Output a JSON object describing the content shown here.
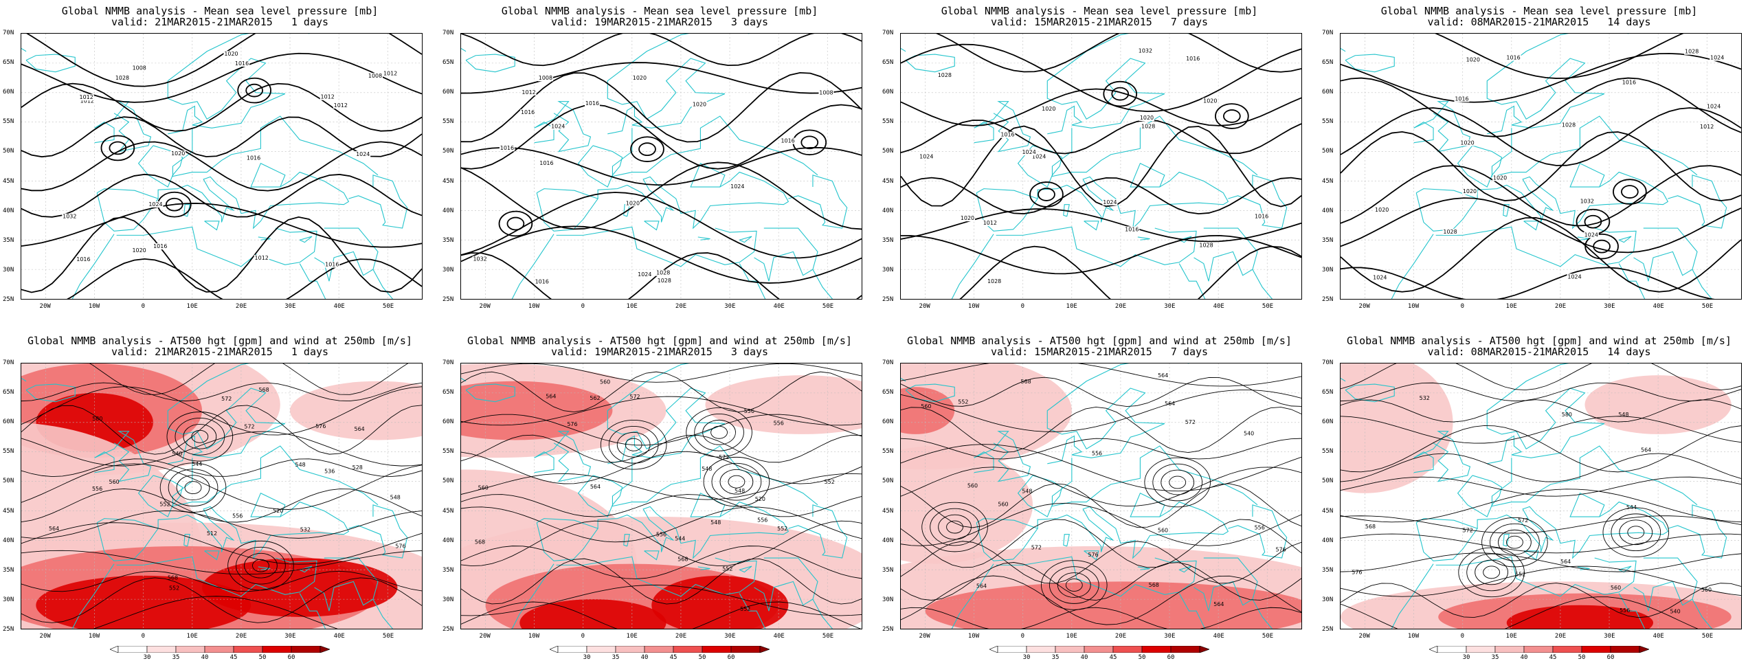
{
  "panels": [
    {
      "row": "mslp",
      "title": "Global NMMB analysis - Mean sea level pressure [mb]",
      "valid": "valid: 21MAR2015-21MAR2015   1 days"
    },
    {
      "row": "mslp",
      "title": "Global NMMB analysis - Mean sea level pressure [mb]",
      "valid": "valid: 19MAR2015-21MAR2015   3 days"
    },
    {
      "row": "mslp",
      "title": "Global NMMB analysis - Mean sea level pressure [mb]",
      "valid": "valid: 15MAR2015-21MAR2015   7 days"
    },
    {
      "row": "mslp",
      "title": "Global NMMB analysis - Mean sea level pressure [mb]",
      "valid": "valid: 08MAR2015-21MAR2015   14 days"
    },
    {
      "row": "z500",
      "title": "Global NMMB analysis - AT500 hgt [gpm] and wind at 250mb [m/s]",
      "valid": "valid: 21MAR2015-21MAR2015   1 days"
    },
    {
      "row": "z500",
      "title": "Global NMMB analysis - AT500 hgt [gpm] and wind at 250mb [m/s]",
      "valid": "valid: 19MAR2015-21MAR2015   3 days"
    },
    {
      "row": "z500",
      "title": "Global NMMB analysis - AT500 hgt [gpm] and wind at 250mb [m/s]",
      "valid": "valid: 15MAR2015-21MAR2015   7 days"
    },
    {
      "row": "z500",
      "title": "Global NMMB analysis - AT500 hgt [gpm] and wind at 250mb [m/s]",
      "valid": "valid: 08MAR2015-21MAR2015   14 days"
    }
  ],
  "lat_labels": [
    "70N",
    "65N",
    "60N",
    "55N",
    "50N",
    "45N",
    "40N",
    "35N",
    "30N",
    "25N"
  ],
  "lon_labels": [
    "20W",
    "10W",
    "0",
    "10E",
    "20E",
    "30E",
    "40E",
    "50E"
  ],
  "colorbar_labels": [
    "30",
    "35",
    "40",
    "45",
    "50",
    "60"
  ],
  "mslp_contour_labels": [
    [
      "1028",
      "1024",
      "1020",
      "1016",
      "1032",
      "1012",
      "1016",
      "1020",
      "1024",
      "1008",
      "1012",
      "1008",
      "1012",
      "1012",
      "1016",
      "1016",
      "1016",
      "1012",
      "1020",
      "1012"
    ],
    [
      "1028",
      "1024",
      "1032",
      "1028",
      "1024",
      "1024",
      "1020",
      "1016",
      "1020",
      "1012",
      "1016",
      "1008",
      "1020",
      "1016",
      "1016",
      "1016",
      "1008",
      "1016"
    ],
    [
      "1028",
      "1024",
      "1028",
      "1028",
      "1024",
      "1024",
      "1032",
      "1028",
      "1024",
      "1020",
      "1016",
      "1020",
      "1016",
      "1012",
      "1016",
      "1020",
      "1016",
      "1020"
    ],
    [
      "1020",
      "1024",
      "1028",
      "1028",
      "1012",
      "1020",
      "1024",
      "1024",
      "1032",
      "1028",
      "1024",
      "1020",
      "1024",
      "1020",
      "1016",
      "1016",
      "1020",
      "1016"
    ]
  ],
  "z500_contour_labels": [
    [
      "552",
      "556",
      "564",
      "568",
      "572",
      "512",
      "520",
      "528",
      "532",
      "536",
      "540",
      "548",
      "552",
      "544",
      "556",
      "548",
      "568",
      "576",
      "580",
      "572",
      "576",
      "564",
      "560"
    ],
    [
      "548",
      "552",
      "556",
      "562",
      "564",
      "568",
      "572",
      "520",
      "552",
      "560",
      "556",
      "548",
      "552",
      "544",
      "560",
      "568",
      "572",
      "576",
      "564",
      "556",
      "548",
      "552",
      "556"
    ],
    [
      "540",
      "548",
      "552",
      "560",
      "564",
      "568",
      "564",
      "560",
      "556",
      "560",
      "564",
      "572",
      "576",
      "564",
      "560",
      "568",
      "556",
      "572",
      "576"
    ],
    [
      "532",
      "540",
      "544",
      "548",
      "552",
      "556",
      "560",
      "564",
      "568",
      "572",
      "580",
      "576",
      "572",
      "564",
      "560"
    ]
  ],
  "colors": {
    "coast": "#22c4cc",
    "contour": "#000000",
    "wind_light": "#f8c8c8",
    "wind_mid": "#f07070",
    "wind_dark": "#dd0000",
    "wind_darkest": "#8b0000"
  }
}
